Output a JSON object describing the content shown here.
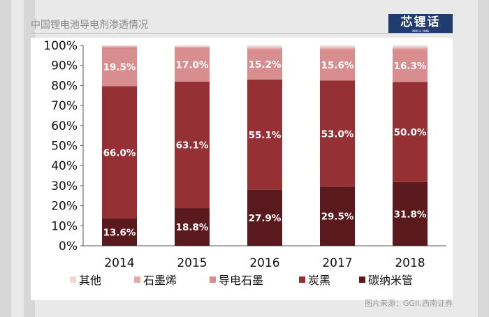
{
  "header": {
    "title": "中国锂电池导电剂渗透情况",
    "logo_text": "芯锂话",
    "logo_subtitle": "XIN LI HUA"
  },
  "source": "图片来源：GGII,西南证券",
  "chart_data": {
    "type": "bar",
    "stacked": true,
    "categories": [
      "2014",
      "2015",
      "2016",
      "2017",
      "2018"
    ],
    "ylim": [
      0,
      100
    ],
    "yticks": [
      "0%",
      "10%",
      "20%",
      "30%",
      "40%",
      "50%",
      "60%",
      "70%",
      "80%",
      "90%",
      "100%"
    ],
    "legend_position": "bottom",
    "series": [
      {
        "name": "碳纳米管",
        "color": "#5a1a1d",
        "values": [
          13.6,
          18.8,
          27.9,
          29.5,
          31.8
        ],
        "labels": [
          "13.6%",
          "18.8%",
          "27.9%",
          "29.5%",
          "31.8%"
        ]
      },
      {
        "name": "炭黑",
        "color": "#953135",
        "values": [
          66.0,
          63.1,
          55.1,
          53.0,
          50.0
        ],
        "labels": [
          "66.0%",
          "63.1%",
          "55.1%",
          "53.0%",
          "50.0%"
        ]
      },
      {
        "name": "导电石墨",
        "color": "#d88e8f",
        "values": [
          19.5,
          17.0,
          15.2,
          15.6,
          16.3
        ],
        "labels": [
          "19.5%",
          "17.0%",
          "15.2%",
          "15.6%",
          "16.3%"
        ]
      },
      {
        "name": "石墨烯",
        "color": "#e2aaab",
        "values": [
          0.5,
          0.5,
          0.8,
          0.9,
          0.9
        ],
        "labels": null
      },
      {
        "name": "其他",
        "color": "#f1d8d8",
        "values": [
          0.4,
          0.6,
          1.0,
          1.0,
          1.0
        ],
        "labels": null
      }
    ],
    "legend_order": [
      4,
      3,
      2,
      1,
      0
    ]
  }
}
